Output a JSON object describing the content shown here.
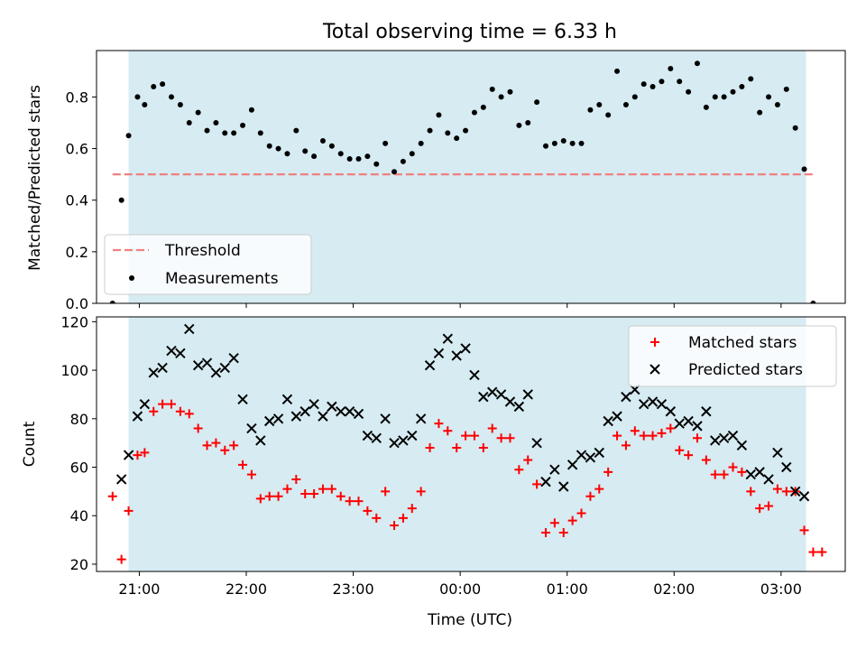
{
  "title": "Total observing time = 6.33 h",
  "colors": {
    "shade": "#add8e6",
    "threshold": "#f08080",
    "matched": "#ff0000",
    "predicted": "#000000",
    "measurement": "#000000"
  },
  "chart_data": [
    {
      "type": "scatter",
      "ylabel": "Matched/Predicted stars",
      "xlabel": "",
      "xlim": [
        "20:36",
        "03:36"
      ],
      "ylim": [
        0,
        0.98
      ],
      "yticks": [
        "0.0",
        "0.2",
        "0.4",
        "0.6",
        "0.8"
      ],
      "observing_window": [
        "20:54",
        "03:14"
      ],
      "threshold": {
        "value": 0.5,
        "from": "20:45",
        "to": "03:18"
      },
      "legend": {
        "position": "lower-left",
        "entries": [
          "Threshold",
          "Measurements"
        ]
      },
      "series": [
        {
          "name": "Measurements",
          "x": [
            "20:45",
            "20:50",
            "20:54",
            "20:59",
            "21:03",
            "21:08",
            "21:13",
            "21:18",
            "21:23",
            "21:28",
            "21:33",
            "21:38",
            "21:43",
            "21:48",
            "21:53",
            "21:58",
            "22:03",
            "22:08",
            "22:13",
            "22:18",
            "22:23",
            "22:28",
            "22:33",
            "22:38",
            "22:43",
            "22:48",
            "22:53",
            "22:58",
            "23:03",
            "23:08",
            "23:13",
            "23:18",
            "23:23",
            "23:28",
            "23:33",
            "23:38",
            "23:43",
            "23:48",
            "23:53",
            "23:58",
            "00:03",
            "00:08",
            "00:13",
            "00:18",
            "00:23",
            "00:28",
            "00:33",
            "00:38",
            "00:43",
            "00:48",
            "00:53",
            "00:58",
            "01:03",
            "01:08",
            "01:13",
            "01:18",
            "01:23",
            "01:28",
            "01:33",
            "01:38",
            "01:43",
            "01:48",
            "01:53",
            "01:58",
            "02:03",
            "02:08",
            "02:13",
            "02:18",
            "02:23",
            "02:28",
            "02:33",
            "02:38",
            "02:43",
            "02:48",
            "02:53",
            "02:58",
            "03:03",
            "03:08",
            "03:13",
            "03:18"
          ],
          "y": [
            0.0,
            0.4,
            0.65,
            0.8,
            0.77,
            0.84,
            0.85,
            0.8,
            0.77,
            0.7,
            0.74,
            0.67,
            0.7,
            0.66,
            0.66,
            0.69,
            0.75,
            0.66,
            0.61,
            0.6,
            0.58,
            0.67,
            0.59,
            0.57,
            0.63,
            0.61,
            0.58,
            0.56,
            0.56,
            0.57,
            0.54,
            0.62,
            0.51,
            0.55,
            0.58,
            0.62,
            0.67,
            0.73,
            0.66,
            0.64,
            0.67,
            0.74,
            0.76,
            0.83,
            0.8,
            0.82,
            0.69,
            0.7,
            0.78,
            0.61,
            0.62,
            0.63,
            0.62,
            0.62,
            0.75,
            0.77,
            0.73,
            0.9,
            0.77,
            0.8,
            0.85,
            0.84,
            0.86,
            0.91,
            0.86,
            0.82,
            0.93,
            0.76,
            0.8,
            0.8,
            0.82,
            0.84,
            0.87,
            0.74,
            0.8,
            0.77,
            0.83,
            0.68,
            0.52,
            0.0
          ]
        }
      ]
    },
    {
      "type": "scatter",
      "ylabel": "Count",
      "xlabel": "Time (UTC)",
      "xlim": [
        "20:36",
        "03:36"
      ],
      "ylim": [
        17,
        122
      ],
      "yticks": [
        "20",
        "40",
        "60",
        "80",
        "100",
        "120"
      ],
      "xticks": [
        "21:00",
        "22:00",
        "23:00",
        "00:00",
        "01:00",
        "02:00",
        "03:00"
      ],
      "observing_window": [
        "20:54",
        "03:14"
      ],
      "legend": {
        "position": "upper-right",
        "entries": [
          "Matched stars",
          "Predicted stars"
        ]
      },
      "series": [
        {
          "name": "Matched stars",
          "x": [
            "20:45",
            "20:50",
            "20:54",
            "20:59",
            "21:03",
            "21:08",
            "21:13",
            "21:18",
            "21:23",
            "21:28",
            "21:33",
            "21:38",
            "21:43",
            "21:48",
            "21:53",
            "21:58",
            "22:03",
            "22:08",
            "22:13",
            "22:18",
            "22:23",
            "22:28",
            "22:33",
            "22:38",
            "22:43",
            "22:48",
            "22:53",
            "22:58",
            "23:03",
            "23:08",
            "23:13",
            "23:18",
            "23:23",
            "23:28",
            "23:33",
            "23:38",
            "23:43",
            "23:48",
            "23:53",
            "23:58",
            "00:03",
            "00:08",
            "00:13",
            "00:18",
            "00:23",
            "00:28",
            "00:33",
            "00:38",
            "00:43",
            "00:48",
            "00:53",
            "00:58",
            "01:03",
            "01:08",
            "01:13",
            "01:18",
            "01:23",
            "01:28",
            "01:33",
            "01:38",
            "01:43",
            "01:48",
            "01:53",
            "01:58",
            "02:03",
            "02:08",
            "02:13",
            "02:18",
            "02:23",
            "02:28",
            "02:33",
            "02:38",
            "02:43",
            "02:48",
            "02:53",
            "02:58",
            "03:03",
            "03:08",
            "03:13",
            "03:18",
            "03:23"
          ],
          "y": [
            48,
            22,
            42,
            65,
            66,
            83,
            86,
            86,
            83,
            82,
            76,
            69,
            70,
            67,
            69,
            61,
            57,
            47,
            48,
            48,
            51,
            55,
            49,
            49,
            51,
            51,
            48,
            46,
            46,
            42,
            39,
            50,
            36,
            39,
            43,
            50,
            68,
            78,
            75,
            68,
            73,
            73,
            68,
            76,
            72,
            72,
            59,
            63,
            53,
            33,
            37,
            33,
            38,
            41,
            48,
            51,
            58,
            73,
            69,
            75,
            73,
            73,
            74,
            76,
            67,
            65,
            72,
            63,
            57,
            57,
            60,
            58,
            50,
            43,
            44,
            51,
            50,
            50,
            34,
            25,
            25
          ]
        },
        {
          "name": "Predicted stars",
          "x": [
            "20:50",
            "20:54",
            "20:59",
            "21:03",
            "21:08",
            "21:13",
            "21:18",
            "21:23",
            "21:28",
            "21:33",
            "21:38",
            "21:43",
            "21:48",
            "21:53",
            "21:58",
            "22:03",
            "22:08",
            "22:13",
            "22:18",
            "22:23",
            "22:28",
            "22:33",
            "22:38",
            "22:43",
            "22:48",
            "22:53",
            "22:58",
            "23:03",
            "23:08",
            "23:13",
            "23:18",
            "23:23",
            "23:28",
            "23:33",
            "23:38",
            "23:43",
            "23:48",
            "23:53",
            "23:58",
            "00:03",
            "00:08",
            "00:13",
            "00:18",
            "00:23",
            "00:28",
            "00:33",
            "00:38",
            "00:43",
            "00:48",
            "00:53",
            "00:58",
            "01:03",
            "01:08",
            "01:13",
            "01:18",
            "01:23",
            "01:28",
            "01:33",
            "01:38",
            "01:43",
            "01:48",
            "01:53",
            "01:58",
            "02:03",
            "02:08",
            "02:13",
            "02:18",
            "02:23",
            "02:28",
            "02:33",
            "02:38",
            "02:43",
            "02:48",
            "02:53",
            "02:58",
            "03:03",
            "03:08",
            "03:13"
          ],
          "y": [
            55,
            65,
            81,
            86,
            99,
            101,
            108,
            107,
            117,
            102,
            103,
            99,
            101,
            105,
            88,
            76,
            71,
            79,
            80,
            88,
            81,
            83,
            86,
            81,
            85,
            83,
            83,
            82,
            73,
            72,
            80,
            70,
            71,
            73,
            80,
            102,
            107,
            113,
            106,
            109,
            98,
            89,
            91,
            90,
            87,
            85,
            90,
            70,
            54,
            59,
            52,
            61,
            65,
            64,
            66,
            79,
            81,
            89,
            92,
            86,
            87,
            86,
            83,
            78,
            79,
            77,
            83,
            71,
            72,
            73,
            69,
            57,
            58,
            55,
            66,
            60,
            50,
            48
          ]
        }
      ]
    }
  ]
}
